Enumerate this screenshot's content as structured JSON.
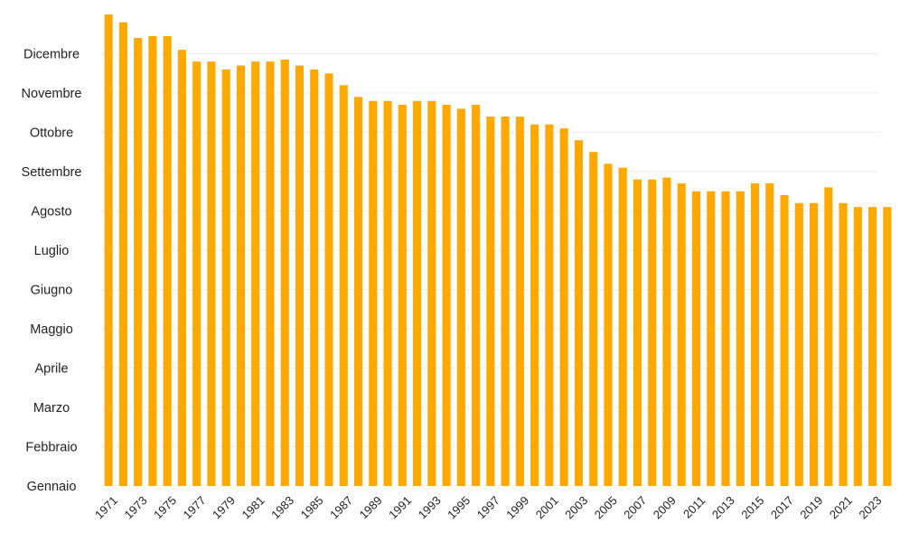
{
  "chart_data": {
    "type": "bar",
    "title": "",
    "xlabel": "",
    "ylabel": "",
    "y_categories": [
      "Gennaio",
      "Febbraio",
      "Marzo",
      "Aprile",
      "Maggio",
      "Giugno",
      "Luglio",
      "Agosto",
      "Settembre",
      "Ottobre",
      "Novembre",
      "Dicembre"
    ],
    "ylim": [
      0,
      12
    ],
    "grid": true,
    "legend": "none",
    "bar_color": "#FFA800",
    "categories": [
      "1971",
      "1972",
      "1973",
      "1974",
      "1975",
      "1976",
      "1977",
      "1978",
      "1979",
      "1980",
      "1981",
      "1982",
      "1983",
      "1984",
      "1985",
      "1986",
      "1987",
      "1988",
      "1989",
      "1990",
      "1991",
      "1992",
      "1993",
      "1994",
      "1995",
      "1996",
      "1997",
      "1998",
      "1999",
      "2000",
      "2001",
      "2002",
      "2003",
      "2004",
      "2005",
      "2006",
      "2007",
      "2008",
      "2009",
      "2010",
      "2011",
      "2012",
      "2013",
      "2014",
      "2015",
      "2016",
      "2017",
      "2018",
      "2019",
      "2020",
      "2021",
      "2022",
      "2023",
      "2024"
    ],
    "x_tick_labels": [
      "1971",
      "1973",
      "1975",
      "1977",
      "1979",
      "1981",
      "1983",
      "1985",
      "1987",
      "1989",
      "1991",
      "1993",
      "1995",
      "1997",
      "1999",
      "2001",
      "2003",
      "2005",
      "2007",
      "2009",
      "2011",
      "2013",
      "2015",
      "2017",
      "2019",
      "2021",
      "2023"
    ],
    "values": [
      12.0,
      11.8,
      11.4,
      11.45,
      11.45,
      11.1,
      10.8,
      10.8,
      10.6,
      10.7,
      10.8,
      10.8,
      10.85,
      10.7,
      10.6,
      10.5,
      10.2,
      9.9,
      9.8,
      9.8,
      9.7,
      9.8,
      9.8,
      9.7,
      9.6,
      9.7,
      9.4,
      9.4,
      9.4,
      9.2,
      9.2,
      9.1,
      8.8,
      8.5,
      8.2,
      8.1,
      7.8,
      7.8,
      7.85,
      7.7,
      7.5,
      7.5,
      7.5,
      7.5,
      7.7,
      7.7,
      7.4,
      7.2,
      7.2,
      7.6,
      7.2,
      7.1,
      7.1,
      7.1
    ]
  }
}
